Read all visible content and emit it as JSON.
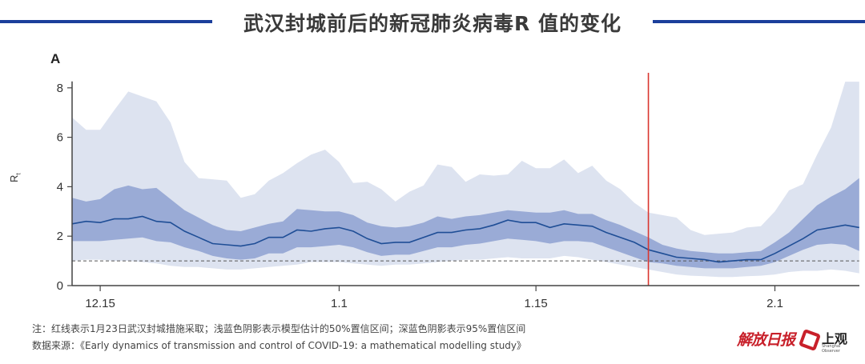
{
  "header": {
    "title": "武汉封城前后的新冠肺炎病毒R  值的变化",
    "line_color": "#1b3f9b"
  },
  "panel_label": "A",
  "y_axis_label": "R",
  "y_axis_label_sub": "t",
  "notes": {
    "note": "注：红线表示1月23日武汉封城措施采取；浅蓝色阴影表示模型估计的50%置信区间；深蓝色阴影表示95%置信区间",
    "source": "数据来源：《Early dynamics of transmission and control of COVID-19: a mathematical modelling study》"
  },
  "logos": {
    "jiefang": "解放日报",
    "shangguan": "上观",
    "shangguan_sub": "Shanghai Observer"
  },
  "chart_data": {
    "type": "line",
    "title": "武汉封城前后的新冠肺炎病毒R 值的变化",
    "xlabel": "",
    "ylabel": "Rt",
    "ylim": [
      0,
      8
    ],
    "yticks": [
      0,
      2,
      4,
      6,
      8
    ],
    "xticks": [
      "12.15",
      "1.1",
      "1.15",
      "2.1"
    ],
    "x_start": "12.13",
    "x_end": "2.7",
    "grid": false,
    "reference_line": {
      "y": 1,
      "style": "dashed",
      "color": "#555555"
    },
    "event_line": {
      "x": "1.23",
      "label": "武汉封城",
      "color": "#d9362f"
    },
    "colors": {
      "outer_band": "#dde3f0",
      "inner_band": "#9aabd6",
      "median": "#1f4e96"
    },
    "x": [
      "12.13",
      "12.14",
      "12.15",
      "12.16",
      "12.17",
      "12.18",
      "12.19",
      "12.20",
      "12.21",
      "12.22",
      "12.23",
      "12.24",
      "12.25",
      "12.26",
      "12.27",
      "12.28",
      "12.29",
      "12.30",
      "12.31",
      "1.1",
      "1.2",
      "1.3",
      "1.4",
      "1.5",
      "1.6",
      "1.7",
      "1.8",
      "1.9",
      "1.10",
      "1.11",
      "1.12",
      "1.13",
      "1.14",
      "1.15",
      "1.16",
      "1.17",
      "1.18",
      "1.19",
      "1.20",
      "1.21",
      "1.22",
      "1.23",
      "1.24",
      "1.25",
      "1.26",
      "1.27",
      "1.28",
      "1.29",
      "1.30",
      "1.31",
      "2.1",
      "2.2",
      "2.3",
      "2.4",
      "2.5",
      "2.6",
      "2.7"
    ],
    "series": [
      {
        "name": "Median Rt",
        "values": [
          2.5,
          2.6,
          2.55,
          2.7,
          2.7,
          2.8,
          2.6,
          2.55,
          2.2,
          1.95,
          1.7,
          1.65,
          1.6,
          1.7,
          1.95,
          1.95,
          2.25,
          2.2,
          2.3,
          2.35,
          2.2,
          1.9,
          1.7,
          1.75,
          1.75,
          1.95,
          2.15,
          2.15,
          2.25,
          2.3,
          2.45,
          2.65,
          2.55,
          2.55,
          2.35,
          2.5,
          2.45,
          2.4,
          2.15,
          1.95,
          1.75,
          1.45,
          1.3,
          1.15,
          1.1,
          1.05,
          0.95,
          1.0,
          1.05,
          1.05,
          1.3,
          1.6,
          1.9,
          2.25,
          2.35,
          2.45,
          2.35
        ]
      },
      {
        "name": "Inner band upper",
        "values": [
          3.55,
          3.4,
          3.5,
          3.9,
          4.05,
          3.9,
          3.95,
          3.5,
          3.05,
          2.75,
          2.45,
          2.25,
          2.2,
          2.35,
          2.5,
          2.6,
          3.1,
          3.05,
          3.0,
          3.0,
          2.85,
          2.55,
          2.4,
          2.35,
          2.4,
          2.55,
          2.8,
          2.7,
          2.8,
          2.85,
          2.95,
          3.05,
          3.0,
          2.95,
          2.95,
          3.05,
          2.9,
          2.9,
          2.65,
          2.45,
          2.2,
          1.95,
          1.65,
          1.5,
          1.4,
          1.35,
          1.3,
          1.3,
          1.35,
          1.4,
          1.75,
          2.15,
          2.7,
          3.25,
          3.6,
          3.9,
          4.35
        ]
      },
      {
        "name": "Inner band lower",
        "values": [
          1.8,
          1.8,
          1.8,
          1.85,
          1.9,
          1.95,
          1.8,
          1.75,
          1.55,
          1.4,
          1.2,
          1.1,
          1.05,
          1.1,
          1.3,
          1.3,
          1.55,
          1.55,
          1.6,
          1.65,
          1.55,
          1.35,
          1.2,
          1.25,
          1.25,
          1.4,
          1.55,
          1.55,
          1.65,
          1.7,
          1.8,
          1.9,
          1.85,
          1.8,
          1.7,
          1.8,
          1.8,
          1.75,
          1.55,
          1.35,
          1.15,
          0.95,
          0.9,
          0.8,
          0.75,
          0.7,
          0.7,
          0.7,
          0.75,
          0.8,
          0.95,
          1.2,
          1.45,
          1.65,
          1.7,
          1.65,
          1.4
        ]
      },
      {
        "name": "Outer band upper",
        "values": [
          6.8,
          6.3,
          6.3,
          7.1,
          7.85,
          7.65,
          7.45,
          6.6,
          5.0,
          4.35,
          4.3,
          4.25,
          3.55,
          3.7,
          4.25,
          4.55,
          4.95,
          5.3,
          5.5,
          5.0,
          4.15,
          4.2,
          3.9,
          3.4,
          3.8,
          4.05,
          4.9,
          4.8,
          4.2,
          4.5,
          4.45,
          4.5,
          5.05,
          4.75,
          4.75,
          5.1,
          4.55,
          4.85,
          4.25,
          3.9,
          3.35,
          2.95,
          2.85,
          2.75,
          2.25,
          2.05,
          2.1,
          2.15,
          2.35,
          2.4,
          3.0,
          3.85,
          4.1,
          5.3,
          6.4,
          8.25,
          8.25
        ]
      },
      {
        "name": "Outer band lower",
        "values": [
          1.0,
          1.05,
          1.05,
          1.0,
          1.0,
          0.95,
          0.9,
          0.8,
          0.75,
          0.75,
          0.7,
          0.65,
          0.65,
          0.7,
          0.75,
          0.8,
          0.85,
          0.95,
          0.95,
          0.95,
          0.9,
          0.85,
          0.8,
          0.85,
          0.85,
          0.9,
          0.95,
          1.0,
          1.05,
          1.05,
          1.1,
          1.15,
          1.1,
          1.1,
          1.1,
          1.2,
          1.15,
          1.05,
          0.95,
          0.85,
          0.75,
          0.65,
          0.55,
          0.45,
          0.4,
          0.38,
          0.35,
          0.35,
          0.38,
          0.4,
          0.45,
          0.55,
          0.6,
          0.6,
          0.65,
          0.6,
          0.5
        ]
      }
    ],
    "legend": [],
    "annotations": [
      "1月23日武汉封城（红线）"
    ]
  }
}
